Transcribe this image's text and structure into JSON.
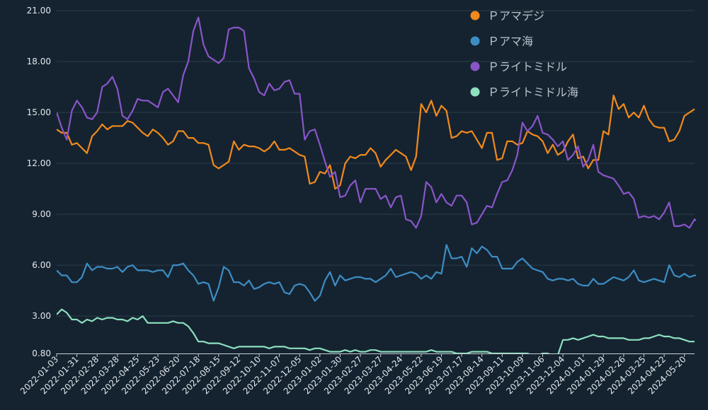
{
  "colors": {
    "background": "#152330",
    "grid": "#2c3d4a",
    "axis": "#c7ced4",
    "text": "#e3e9ee",
    "legend_text": "#b9c2ca"
  },
  "chart_data": {
    "type": "line",
    "title": "",
    "xlabel": "",
    "ylabel": "",
    "ylim": [
      0.8,
      21.0
    ],
    "yticks": [
      "0.80",
      "3.00",
      "6.00",
      "9.00",
      "12.00",
      "15.00",
      "18.00",
      "21.00"
    ],
    "ytick_values": [
      0.8,
      3.0,
      6.0,
      9.0,
      12.0,
      15.0,
      18.0,
      21.0
    ],
    "x_start": "2022-01-03",
    "x_end": "2024-06-03",
    "x_interval_days": 7,
    "xticks": [
      "2022-01-03",
      "2022-01-31",
      "2022-02-28",
      "2022-03-28",
      "2022-04-25",
      "2022-05-23",
      "2022-06-20",
      "2022-07-18",
      "2022-08-15",
      "2022-09-12",
      "2022-10-10",
      "2022-11-07",
      "2022-12-05",
      "2023-01-02",
      "2023-01-30",
      "2023-02-27",
      "2023-03-27",
      "2023-04-24",
      "2023-05-22",
      "2023-06-19",
      "2023-07-17",
      "2023-08-14",
      "2023-09-11",
      "2023-10-09",
      "2023-11-06",
      "2023-12-04",
      "2024-01-01",
      "2024-01-29",
      "2024-02-26",
      "2024-03-25",
      "2024-04-22",
      "2024-05-20"
    ],
    "grid": true,
    "legend_position": "top-right",
    "series": [
      {
        "name": "Ｐアマデジ",
        "color": "#f28a1b",
        "values": [
          14.0,
          13.8,
          13.8,
          13.1,
          13.2,
          12.9,
          12.6,
          13.6,
          13.9,
          14.3,
          14.0,
          14.2,
          14.2,
          14.2,
          14.5,
          14.4,
          14.1,
          13.8,
          13.6,
          14.0,
          13.8,
          13.5,
          13.1,
          13.3,
          13.9,
          13.9,
          13.5,
          13.5,
          13.2,
          13.2,
          13.1,
          11.9,
          11.7,
          11.9,
          12.1,
          13.3,
          12.8,
          13.1,
          13.0,
          13.0,
          12.9,
          12.7,
          12.9,
          13.3,
          12.8,
          12.8,
          12.9,
          12.7,
          12.5,
          12.4,
          10.8,
          10.9,
          11.5,
          11.4,
          11.9,
          10.5,
          10.7,
          12.0,
          12.4,
          12.3,
          12.5,
          12.5,
          12.9,
          12.6,
          11.8,
          12.2,
          12.5,
          12.8,
          12.6,
          12.4,
          11.6,
          12.4,
          15.5,
          15.0,
          15.7,
          14.8,
          15.4,
          15.1,
          13.5,
          13.6,
          13.9,
          13.8,
          13.9,
          13.4,
          12.9,
          13.8,
          13.8,
          12.2,
          12.3,
          13.3,
          13.3,
          13.1,
          13.2,
          13.9,
          13.7,
          13.6,
          13.3,
          12.6,
          13.1,
          12.5,
          12.7,
          13.3,
          13.7,
          12.3,
          12.4,
          11.7,
          12.2,
          12.2,
          13.9,
          13.7,
          16.0,
          15.2,
          15.5,
          14.7,
          15.0,
          14.7,
          15.4,
          14.6,
          14.2,
          14.1,
          14.1,
          13.3,
          13.4,
          13.9,
          14.8,
          15.0,
          15.2
        ]
      },
      {
        "name": "Ｐアマ海",
        "color": "#3d8dc4",
        "values": [
          5.7,
          5.4,
          5.4,
          5.0,
          5.0,
          5.3,
          6.1,
          5.7,
          5.9,
          5.9,
          5.8,
          5.8,
          5.9,
          5.6,
          5.9,
          6.0,
          5.7,
          5.7,
          5.7,
          5.6,
          5.7,
          5.7,
          5.3,
          6.0,
          6.0,
          6.1,
          5.7,
          5.4,
          4.9,
          5.0,
          4.9,
          3.9,
          4.7,
          5.9,
          5.7,
          5.0,
          5.0,
          4.8,
          5.1,
          4.6,
          4.7,
          4.9,
          5.0,
          4.9,
          5.0,
          4.4,
          4.3,
          4.8,
          4.9,
          4.8,
          4.4,
          3.9,
          4.2,
          5.1,
          5.6,
          4.8,
          5.4,
          5.1,
          5.2,
          5.3,
          5.3,
          5.2,
          5.2,
          5.0,
          5.2,
          5.4,
          5.8,
          5.3,
          5.4,
          5.5,
          5.6,
          5.5,
          5.2,
          5.4,
          5.2,
          5.6,
          5.5,
          7.2,
          6.4,
          6.4,
          6.5,
          5.9,
          7.0,
          6.7,
          7.1,
          6.9,
          6.5,
          6.5,
          5.8,
          5.8,
          5.8,
          6.2,
          6.4,
          6.1,
          5.8,
          5.7,
          5.6,
          5.2,
          5.1,
          5.2,
          5.2,
          5.1,
          5.2,
          4.9,
          4.8,
          4.8,
          5.2,
          4.9,
          4.9,
          5.1,
          5.3,
          5.2,
          5.1,
          5.3,
          5.7,
          5.1,
          5.0,
          5.1,
          5.2,
          5.1,
          5.0,
          6.0,
          5.4,
          5.3,
          5.5,
          5.3,
          5.4,
          5.4
        ]
      },
      {
        "name": "Ｐライトミドル",
        "color": "#8a55c9",
        "values": [
          15.0,
          14.1,
          13.4,
          15.1,
          15.7,
          15.3,
          14.7,
          14.6,
          15.0,
          16.5,
          16.7,
          17.1,
          16.4,
          14.8,
          14.6,
          15.1,
          15.8,
          15.7,
          15.7,
          15.5,
          15.3,
          16.2,
          16.4,
          16.0,
          15.6,
          17.2,
          18.0,
          19.8,
          20.6,
          19.0,
          18.3,
          18.1,
          17.9,
          18.2,
          19.9,
          20.0,
          20.0,
          19.8,
          17.6,
          17.0,
          16.2,
          16.0,
          16.7,
          16.3,
          16.4,
          16.8,
          16.9,
          16.1,
          16.1,
          13.4,
          13.9,
          14.0,
          13.1,
          12.1,
          11.2,
          11.5,
          10.0,
          10.1,
          10.7,
          11.0,
          9.7,
          10.5,
          10.5,
          10.5,
          9.9,
          10.1,
          9.4,
          10.0,
          10.1,
          8.7,
          8.6,
          8.2,
          8.9,
          10.9,
          10.6,
          9.7,
          10.2,
          9.7,
          9.5,
          10.1,
          10.1,
          9.7,
          8.4,
          8.5,
          9.0,
          9.5,
          9.4,
          10.2,
          10.9,
          11.0,
          11.6,
          12.5,
          14.4,
          13.9,
          14.2,
          14.8,
          13.8,
          13.7,
          13.4,
          13.0,
          13.3,
          12.2,
          12.5,
          13.0,
          11.8,
          12.2,
          13.1,
          11.5,
          11.3,
          11.2,
          11.1,
          10.7,
          10.2,
          10.3,
          9.9,
          8.8,
          8.9,
          8.8,
          8.9,
          8.7,
          9.1,
          9.7,
          8.3,
          8.3,
          8.4,
          8.2,
          8.7,
          8.5
        ]
      },
      {
        "name": "Ｐライトミドル海",
        "color": "#8ddfc0",
        "values": [
          3.1,
          3.4,
          3.2,
          2.8,
          2.8,
          2.6,
          2.8,
          2.7,
          2.9,
          2.8,
          2.9,
          2.9,
          2.8,
          2.8,
          2.7,
          2.9,
          2.8,
          3.0,
          2.6,
          2.6,
          2.6,
          2.6,
          2.6,
          2.7,
          2.6,
          2.6,
          2.4,
          2.0,
          1.5,
          1.5,
          1.4,
          1.4,
          1.4,
          1.3,
          1.2,
          1.1,
          1.2,
          1.2,
          1.2,
          1.2,
          1.2,
          1.2,
          1.1,
          1.2,
          1.2,
          1.2,
          1.1,
          1.1,
          1.1,
          1.1,
          1.0,
          1.1,
          1.1,
          1.0,
          0.9,
          0.9,
          0.9,
          1.0,
          0.9,
          1.0,
          0.9,
          0.9,
          1.0,
          1.0,
          0.9,
          0.9,
          0.9,
          0.9,
          0.9,
          0.9,
          0.9,
          0.9,
          0.9,
          0.9,
          1.0,
          0.9,
          0.9,
          0.9,
          0.9,
          0.8,
          0.8,
          0.8,
          0.9,
          0.9,
          0.9,
          0.9,
          0.8,
          0.8,
          0.8,
          0.8,
          0.8,
          0.8,
          0.8,
          0.8,
          0.7,
          0.7,
          0.8,
          0.8,
          0.7,
          0.7,
          1.6,
          1.6,
          1.7,
          1.6,
          1.7,
          1.8,
          1.9,
          1.8,
          1.8,
          1.7,
          1.7,
          1.7,
          1.7,
          1.6,
          1.6,
          1.6,
          1.7,
          1.7,
          1.8,
          1.9,
          1.8,
          1.8,
          1.7,
          1.7,
          1.6,
          1.5,
          1.5
        ]
      }
    ]
  }
}
